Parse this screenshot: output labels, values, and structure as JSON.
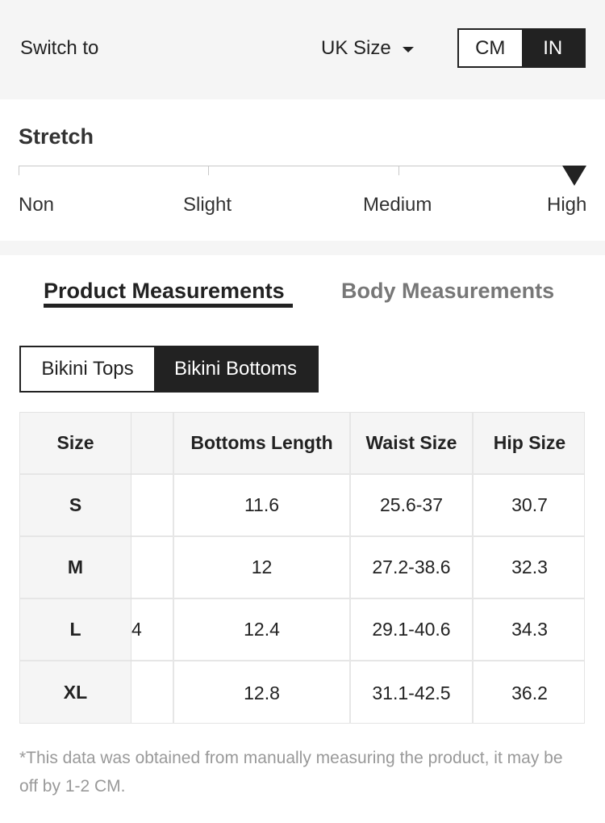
{
  "topbar": {
    "switch_label": "Switch to",
    "size_system": "UK Size",
    "units": [
      "CM",
      "IN"
    ],
    "active_unit": "IN"
  },
  "stretch": {
    "title": "Stretch",
    "levels": [
      "Non",
      "Slight",
      "Medium",
      "High"
    ],
    "selected": "High"
  },
  "tabs": {
    "product": "Product Measurements",
    "body": "Body Measurements",
    "active": "Product Measurements"
  },
  "categories": {
    "tops": "Bikini Tops",
    "bottoms": "Bikini Bottoms",
    "active": "Bikini Bottoms"
  },
  "table": {
    "headers": [
      "Size",
      "",
      "Bottoms Length",
      "Waist Size",
      "Hip Size"
    ],
    "rows": [
      {
        "size": "S",
        "hidden": "",
        "length": "11.6",
        "waist": "25.6-37",
        "hip": "30.7"
      },
      {
        "size": "M",
        "hidden": "",
        "length": "12",
        "waist": "27.2-38.6",
        "hip": "32.3"
      },
      {
        "size": "L",
        "hidden": "4",
        "length": "12.4",
        "waist": "29.1-40.6",
        "hip": "34.3"
      },
      {
        "size": "XL",
        "hidden": "",
        "length": "12.8",
        "waist": "31.1-42.5",
        "hip": "36.2"
      }
    ]
  },
  "footnote": "*This data was obtained from manually measuring the product, it may be off by 1-2 CM."
}
